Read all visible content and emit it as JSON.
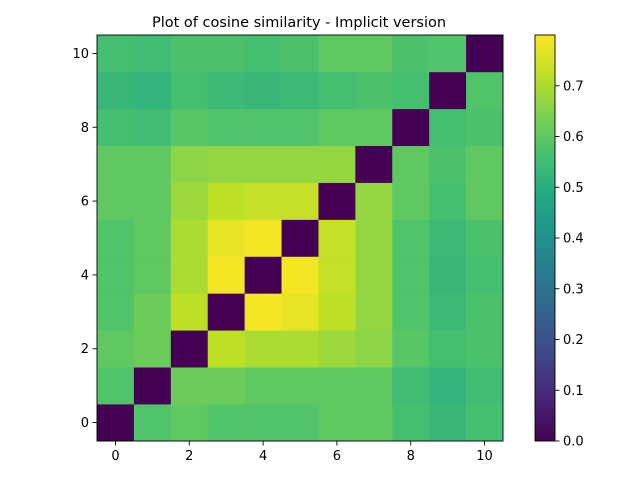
{
  "chart_data": {
    "type": "heatmap",
    "title": "Plot of cosine similarity - Implicit version",
    "xlabel": "",
    "ylabel": "",
    "colormap": "viridis",
    "x_ticks": [
      0,
      2,
      4,
      6,
      8,
      10
    ],
    "y_ticks": [
      0,
      2,
      4,
      6,
      8,
      10
    ],
    "xlim": [
      -0.5,
      10.5
    ],
    "ylim": [
      -0.5,
      10.5
    ],
    "colorbar": {
      "range": [
        0.0,
        0.8
      ],
      "ticks": [
        0.0,
        0.1,
        0.2,
        0.3,
        0.4,
        0.5,
        0.6,
        0.7
      ],
      "tick_labels": [
        "0.0",
        "0.1",
        "0.2",
        "0.3",
        "0.4",
        "0.5",
        "0.6",
        "0.7"
      ]
    },
    "row_order": "bottom-to-top",
    "matrix": [
      [
        0.0,
        0.58,
        0.6,
        0.58,
        0.58,
        0.58,
        0.6,
        0.6,
        0.56,
        0.53,
        0.56
      ],
      [
        0.58,
        0.0,
        0.62,
        0.62,
        0.6,
        0.6,
        0.6,
        0.6,
        0.55,
        0.52,
        0.55
      ],
      [
        0.6,
        0.62,
        0.0,
        0.72,
        0.7,
        0.7,
        0.68,
        0.66,
        0.59,
        0.56,
        0.57
      ],
      [
        0.58,
        0.62,
        0.72,
        0.0,
        0.79,
        0.77,
        0.72,
        0.67,
        0.58,
        0.54,
        0.57
      ],
      [
        0.58,
        0.6,
        0.7,
        0.79,
        0.0,
        0.79,
        0.73,
        0.67,
        0.58,
        0.53,
        0.56
      ],
      [
        0.58,
        0.6,
        0.7,
        0.77,
        0.79,
        0.0,
        0.73,
        0.67,
        0.58,
        0.54,
        0.57
      ],
      [
        0.6,
        0.6,
        0.68,
        0.72,
        0.73,
        0.73,
        0.0,
        0.67,
        0.6,
        0.56,
        0.6
      ],
      [
        0.6,
        0.6,
        0.66,
        0.67,
        0.67,
        0.67,
        0.67,
        0.0,
        0.6,
        0.57,
        0.6
      ],
      [
        0.56,
        0.55,
        0.59,
        0.58,
        0.58,
        0.58,
        0.6,
        0.6,
        0.0,
        0.56,
        0.57
      ],
      [
        0.53,
        0.52,
        0.56,
        0.54,
        0.53,
        0.54,
        0.56,
        0.57,
        0.56,
        0.0,
        0.58
      ],
      [
        0.56,
        0.55,
        0.57,
        0.57,
        0.56,
        0.57,
        0.6,
        0.6,
        0.57,
        0.58,
        0.0
      ]
    ]
  }
}
